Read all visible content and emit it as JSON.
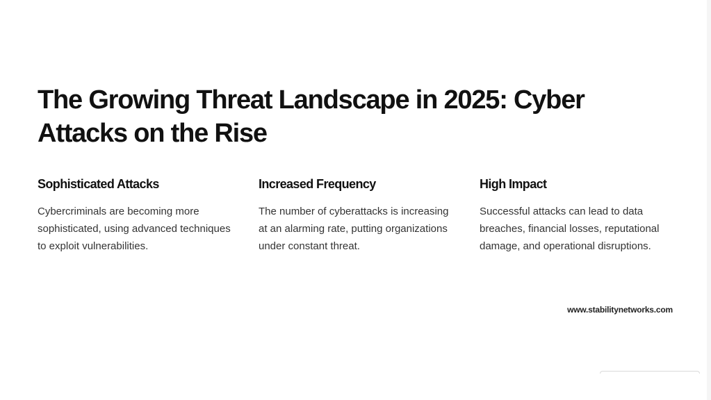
{
  "slide": {
    "title": "The Growing Threat Landscape in 2025: Cyber Attacks on the Rise",
    "columns": [
      {
        "heading": "Sophisticated Attacks",
        "body": "Cybercriminals are becoming more sophisticated, using advanced techniques to exploit vulnerabilities."
      },
      {
        "heading": "Increased Frequency",
        "body": "The number of cyberattacks is increasing at an alarming rate, putting organizations under constant threat."
      },
      {
        "heading": "High Impact",
        "body": "Successful attacks can lead to data breaches, financial losses, reputational damage, and operational disruptions."
      }
    ],
    "footer_url": "www.stabilitynetworks.com"
  }
}
